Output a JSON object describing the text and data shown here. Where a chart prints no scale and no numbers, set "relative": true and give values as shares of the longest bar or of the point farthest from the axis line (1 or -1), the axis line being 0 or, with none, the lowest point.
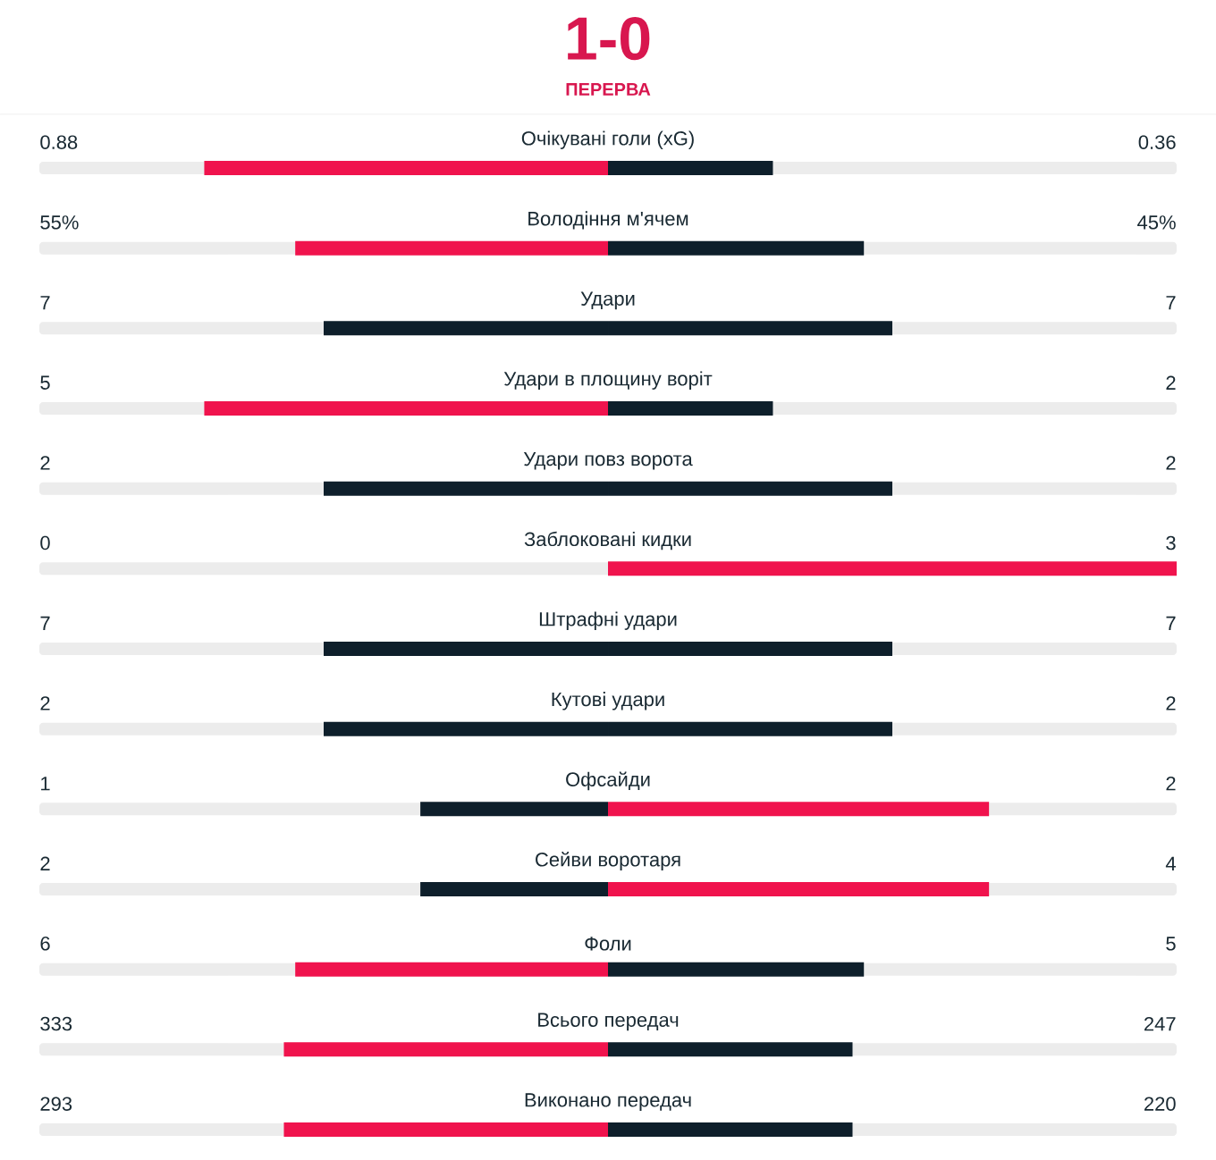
{
  "chart_data": {
    "type": "bar",
    "orientation": "horizontal",
    "stacked": true,
    "relative": true,
    "title": "1-0",
    "subtitle": "ПЕРЕРВА",
    "categories": [
      "Очікувані голи (xG)",
      "Володіння м'ячем",
      "Удари",
      "Удари в площину воріт",
      "Удари повз ворота",
      "Заблоковані кидки",
      "Штрафні удари",
      "Кутові удари",
      "Офсайди",
      "Сейви воротаря",
      "Фоли",
      "Всього передач",
      "Виконано передач"
    ],
    "series": [
      {
        "values": [
          -0.71,
          -0.55,
          -0.5,
          -0.71,
          -0.5,
          0,
          -0.5,
          -0.5,
          -0.33,
          -0.33,
          -0.55,
          -0.57,
          -0.57
        ],
        "colors": [
          "#f0134d",
          "#f0134d",
          "#0e1f2b",
          "#f0134d",
          "#0e1f2b",
          "#0e1f2b",
          "#0e1f2b",
          "#0e1f2b",
          "#0e1f2b",
          "#0e1f2b",
          "#f0134d",
          "#f0134d",
          "#f0134d"
        ]
      },
      {
        "values": [
          0.29,
          0.45,
          0.5,
          0.29,
          0.5,
          1,
          0.5,
          0.5,
          0.67,
          0.67,
          0.45,
          0.43,
          0.43
        ],
        "colors": [
          "#0e1f2b",
          "#0e1f2b",
          "#0e1f2b",
          "#0e1f2b",
          "#0e1f2b",
          "#f0134d",
          "#0e1f2b",
          "#0e1f2b",
          "#f0134d",
          "#f0134d",
          "#0e1f2b",
          "#0e1f2b",
          "#0e1f2b"
        ]
      }
    ],
    "annotations": [
      "0.88",
      "0.36",
      "55%",
      "45%",
      "7",
      "7",
      "5",
      "2",
      "2",
      "2",
      "0",
      "3",
      "7",
      "7",
      "2",
      "2",
      "1",
      "2",
      "2",
      "4",
      "6",
      "5",
      "333",
      "247",
      "293",
      "220"
    ]
  }
}
